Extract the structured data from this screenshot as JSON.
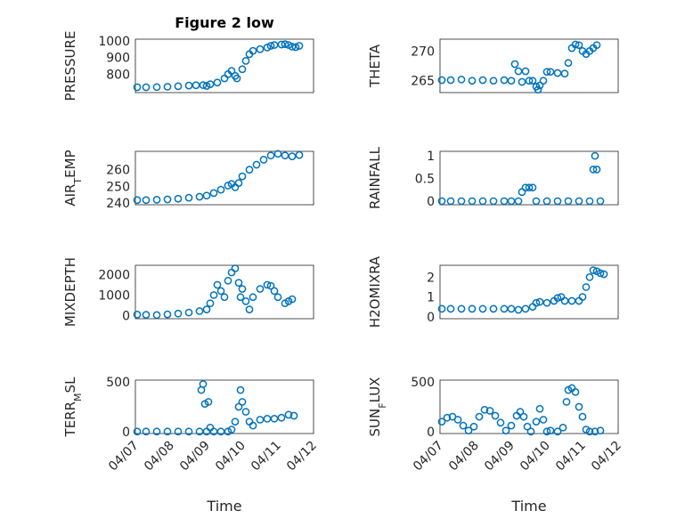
{
  "figure": {
    "title": "Figure 2 low"
  },
  "colors": {
    "marker": "#0072BD",
    "axis": "#262626",
    "grid": "#d0d0d0"
  },
  "chart_data": [
    {
      "type": "scatter",
      "ylabel": "PRESSURE",
      "title": "Figure 2 low",
      "x_tick_labels": [
        "04/07",
        "04/08",
        "04/09",
        "04/10",
        "04/11",
        "04/12"
      ],
      "show_x_tick_labels": false,
      "xlim": [
        0,
        5
      ],
      "ylim": [
        690,
        1010
      ],
      "yticks": [
        800,
        900,
        1000
      ],
      "grid": true,
      "series": [
        {
          "points": [
            [
              0.05,
              722
            ],
            [
              0.3,
              722
            ],
            [
              0.6,
              723
            ],
            [
              0.9,
              725
            ],
            [
              1.2,
              728
            ],
            [
              1.5,
              732
            ],
            [
              1.7,
              734
            ],
            [
              1.9,
              735
            ],
            [
              2.0,
              730
            ],
            [
              2.1,
              740
            ],
            [
              2.3,
              750
            ],
            [
              2.5,
              775
            ],
            [
              2.6,
              800
            ],
            [
              2.7,
              820
            ],
            [
              2.8,
              790
            ],
            [
              2.85,
              775
            ],
            [
              3.0,
              830
            ],
            [
              3.1,
              880
            ],
            [
              3.2,
              920
            ],
            [
              3.3,
              940
            ],
            [
              3.5,
              950
            ],
            [
              3.7,
              960
            ],
            [
              3.8,
              970
            ],
            [
              3.9,
              975
            ],
            [
              4.1,
              978
            ],
            [
              4.2,
              980
            ],
            [
              4.3,
              975
            ],
            [
              4.4,
              965
            ],
            [
              4.5,
              962
            ],
            [
              4.6,
              970
            ]
          ]
        }
      ]
    },
    {
      "type": "scatter",
      "ylabel": "THETA",
      "x_tick_labels": [
        "04/07",
        "04/08",
        "04/09",
        "04/10",
        "04/11",
        "04/12"
      ],
      "show_x_tick_labels": false,
      "xlim": [
        0,
        5
      ],
      "ylim": [
        263,
        272
      ],
      "yticks": [
        265,
        270
      ],
      "grid": true,
      "series": [
        {
          "points": [
            [
              0.05,
              265.1
            ],
            [
              0.3,
              265.1
            ],
            [
              0.6,
              265.2
            ],
            [
              0.9,
              265.0
            ],
            [
              1.2,
              265.1
            ],
            [
              1.5,
              265.0
            ],
            [
              1.8,
              265.1
            ],
            [
              2.0,
              265.0
            ],
            [
              2.1,
              267.8
            ],
            [
              2.2,
              266.6
            ],
            [
              2.3,
              264.8
            ],
            [
              2.4,
              266.6
            ],
            [
              2.5,
              265.0
            ],
            [
              2.6,
              265.0
            ],
            [
              2.7,
              264.0
            ],
            [
              2.75,
              263.5
            ],
            [
              2.8,
              264.2
            ],
            [
              2.9,
              265.0
            ],
            [
              3.0,
              266.5
            ],
            [
              3.1,
              266.5
            ],
            [
              3.3,
              266.3
            ],
            [
              3.5,
              266.2
            ],
            [
              3.6,
              268.0
            ],
            [
              3.7,
              270.5
            ],
            [
              3.8,
              271.1
            ],
            [
              3.9,
              271.0
            ],
            [
              4.0,
              270.0
            ],
            [
              4.1,
              269.5
            ],
            [
              4.2,
              270.0
            ],
            [
              4.3,
              270.5
            ],
            [
              4.4,
              271.0
            ]
          ]
        }
      ]
    },
    {
      "type": "scatter",
      "ylabel": "AIR_TEMP",
      "x_tick_labels": [
        "04/07",
        "04/08",
        "04/09",
        "04/10",
        "04/11",
        "04/12"
      ],
      "show_x_tick_labels": false,
      "xlim": [
        0,
        5
      ],
      "ylim": [
        239,
        271
      ],
      "yticks": [
        240,
        250,
        260
      ],
      "grid": true,
      "series": [
        {
          "points": [
            [
              0.05,
              241.8
            ],
            [
              0.3,
              241.8
            ],
            [
              0.6,
              242.0
            ],
            [
              0.9,
              242.2
            ],
            [
              1.2,
              242.6
            ],
            [
              1.5,
              243.2
            ],
            [
              1.8,
              243.8
            ],
            [
              2.0,
              244.5
            ],
            [
              2.2,
              246.0
            ],
            [
              2.4,
              248.0
            ],
            [
              2.6,
              250.5
            ],
            [
              2.7,
              251.5
            ],
            [
              2.8,
              249.5
            ],
            [
              2.9,
              252.0
            ],
            [
              3.0,
              256.0
            ],
            [
              3.2,
              260.0
            ],
            [
              3.4,
              263.0
            ],
            [
              3.6,
              266.0
            ],
            [
              3.8,
              268.5
            ],
            [
              4.0,
              269.5
            ],
            [
              4.2,
              268.5
            ],
            [
              4.4,
              268.0
            ],
            [
              4.6,
              268.8
            ]
          ]
        }
      ]
    },
    {
      "type": "scatter",
      "ylabel": "RAINFALL",
      "x_tick_labels": [
        "04/07",
        "04/08",
        "04/09",
        "04/10",
        "04/11",
        "04/12"
      ],
      "show_x_tick_labels": false,
      "xlim": [
        0,
        5
      ],
      "ylim": [
        -0.08,
        1.1
      ],
      "yticks": [
        0,
        0.5,
        1
      ],
      "grid": true,
      "series": [
        {
          "points": [
            [
              0.05,
              0
            ],
            [
              0.3,
              0
            ],
            [
              0.6,
              0
            ],
            [
              0.9,
              0
            ],
            [
              1.2,
              0
            ],
            [
              1.5,
              0
            ],
            [
              1.8,
              0
            ],
            [
              2.0,
              0
            ],
            [
              2.2,
              0
            ],
            [
              2.3,
              0.2
            ],
            [
              2.4,
              0.3
            ],
            [
              2.5,
              0.3
            ],
            [
              2.6,
              0.3
            ],
            [
              2.7,
              0
            ],
            [
              3.0,
              0
            ],
            [
              3.3,
              0
            ],
            [
              3.6,
              0
            ],
            [
              3.9,
              0
            ],
            [
              4.2,
              0
            ],
            [
              4.3,
              0.7
            ],
            [
              4.35,
              1.0
            ],
            [
              4.4,
              0.7
            ],
            [
              4.5,
              0
            ]
          ]
        }
      ]
    },
    {
      "type": "scatter",
      "ylabel": "MIXDEPTH",
      "x_tick_labels": [
        "04/07",
        "04/08",
        "04/09",
        "04/10",
        "04/11",
        "04/12"
      ],
      "show_x_tick_labels": false,
      "xlim": [
        0,
        5
      ],
      "ylim": [
        -150,
        2450
      ],
      "yticks": [
        0,
        1000,
        2000
      ],
      "grid": true,
      "series": [
        {
          "points": [
            [
              0.05,
              50
            ],
            [
              0.3,
              40
            ],
            [
              0.6,
              30
            ],
            [
              0.9,
              60
            ],
            [
              1.2,
              100
            ],
            [
              1.5,
              150
            ],
            [
              1.8,
              220
            ],
            [
              2.0,
              300
            ],
            [
              2.1,
              600
            ],
            [
              2.2,
              1000
            ],
            [
              2.3,
              1500
            ],
            [
              2.4,
              1200
            ],
            [
              2.5,
              900
            ],
            [
              2.6,
              1700
            ],
            [
              2.7,
              2100
            ],
            [
              2.8,
              2300
            ],
            [
              2.9,
              1600
            ],
            [
              2.95,
              900
            ],
            [
              3.0,
              1300
            ],
            [
              3.1,
              700
            ],
            [
              3.2,
              300
            ],
            [
              3.3,
              900
            ],
            [
              3.5,
              1300
            ],
            [
              3.7,
              1500
            ],
            [
              3.8,
              1450
            ],
            [
              3.9,
              1200
            ],
            [
              4.0,
              900
            ],
            [
              4.2,
              600
            ],
            [
              4.3,
              700
            ],
            [
              4.4,
              800
            ]
          ]
        }
      ]
    },
    {
      "type": "scatter",
      "ylabel": "H2OMIXRA",
      "x_tick_labels": [
        "04/07",
        "04/08",
        "04/09",
        "04/10",
        "04/11",
        "04/12"
      ],
      "show_x_tick_labels": false,
      "xlim": [
        0,
        5
      ],
      "ylim": [
        -0.1,
        2.6
      ],
      "yticks": [
        0,
        1,
        2
      ],
      "grid": true,
      "series": [
        {
          "points": [
            [
              0.05,
              0.4
            ],
            [
              0.3,
              0.4
            ],
            [
              0.6,
              0.4
            ],
            [
              0.9,
              0.4
            ],
            [
              1.2,
              0.4
            ],
            [
              1.5,
              0.4
            ],
            [
              1.8,
              0.4
            ],
            [
              2.0,
              0.4
            ],
            [
              2.2,
              0.35
            ],
            [
              2.4,
              0.4
            ],
            [
              2.6,
              0.5
            ],
            [
              2.7,
              0.7
            ],
            [
              2.8,
              0.75
            ],
            [
              3.0,
              0.7
            ],
            [
              3.2,
              0.8
            ],
            [
              3.3,
              0.95
            ],
            [
              3.4,
              1.0
            ],
            [
              3.5,
              0.8
            ],
            [
              3.7,
              0.8
            ],
            [
              3.9,
              0.8
            ],
            [
              4.0,
              1.0
            ],
            [
              4.1,
              1.5
            ],
            [
              4.2,
              2.0
            ],
            [
              4.3,
              2.35
            ],
            [
              4.4,
              2.3
            ],
            [
              4.5,
              2.2
            ],
            [
              4.6,
              2.15
            ]
          ]
        }
      ]
    },
    {
      "type": "scatter",
      "ylabel": "TERR_MSL",
      "x_tick_labels": [
        "04/07",
        "04/08",
        "04/09",
        "04/10",
        "04/11",
        "04/12"
      ],
      "show_x_tick_labels": true,
      "xlim": [
        0,
        5
      ],
      "ylim": [
        -20,
        520
      ],
      "yticks": [
        0,
        500
      ],
      "grid": true,
      "series": [
        {
          "points": [
            [
              0.05,
              0
            ],
            [
              0.3,
              0
            ],
            [
              0.6,
              0
            ],
            [
              0.9,
              0
            ],
            [
              1.2,
              0
            ],
            [
              1.5,
              0
            ],
            [
              1.8,
              0
            ],
            [
              2.0,
              0
            ],
            [
              1.85,
              420
            ],
            [
              1.9,
              480
            ],
            [
              1.95,
              280
            ],
            [
              2.05,
              300
            ],
            [
              2.1,
              40
            ],
            [
              2.2,
              0
            ],
            [
              2.4,
              0
            ],
            [
              2.6,
              0
            ],
            [
              2.7,
              20
            ],
            [
              2.8,
              100
            ],
            [
              2.9,
              250
            ],
            [
              2.95,
              420
            ],
            [
              3.0,
              300
            ],
            [
              3.1,
              200
            ],
            [
              3.2,
              100
            ],
            [
              3.3,
              60
            ],
            [
              3.5,
              120
            ],
            [
              3.7,
              130
            ],
            [
              3.9,
              130
            ],
            [
              4.1,
              140
            ],
            [
              4.3,
              170
            ],
            [
              4.45,
              160
            ]
          ]
        }
      ]
    },
    {
      "type": "scatter",
      "ylabel": "SUN_FLUX",
      "x_tick_labels": [
        "04/07",
        "04/08",
        "04/09",
        "04/10",
        "04/11",
        "04/12"
      ],
      "show_x_tick_labels": true,
      "xlim": [
        0,
        5
      ],
      "ylim": [
        -20,
        520
      ],
      "yticks": [
        0,
        500
      ],
      "grid": true,
      "series": [
        {
          "points": [
            [
              0.05,
              100
            ],
            [
              0.2,
              140
            ],
            [
              0.35,
              150
            ],
            [
              0.5,
              120
            ],
            [
              0.65,
              60
            ],
            [
              0.8,
              10
            ],
            [
              0.95,
              50
            ],
            [
              1.1,
              150
            ],
            [
              1.25,
              220
            ],
            [
              1.4,
              210
            ],
            [
              1.55,
              160
            ],
            [
              1.7,
              90
            ],
            [
              1.85,
              10
            ],
            [
              2.0,
              60
            ],
            [
              2.15,
              160
            ],
            [
              2.25,
              200
            ],
            [
              2.35,
              150
            ],
            [
              2.45,
              50
            ],
            [
              2.55,
              0
            ],
            [
              2.7,
              100
            ],
            [
              2.8,
              230
            ],
            [
              2.9,
              120
            ],
            [
              3.0,
              0
            ],
            [
              3.1,
              10
            ],
            [
              3.3,
              0
            ],
            [
              3.45,
              40
            ],
            [
              3.55,
              300
            ],
            [
              3.6,
              420
            ],
            [
              3.7,
              440
            ],
            [
              3.8,
              400
            ],
            [
              3.9,
              250
            ],
            [
              4.0,
              150
            ],
            [
              4.1,
              20
            ],
            [
              4.2,
              0
            ],
            [
              4.35,
              0
            ],
            [
              4.5,
              10
            ]
          ]
        }
      ]
    }
  ],
  "xlabel_bottom": "Time"
}
